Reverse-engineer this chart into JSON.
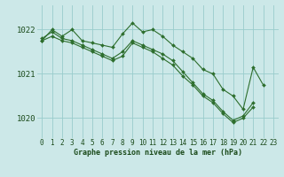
{
  "background_color": "#cce8e8",
  "grid_color": "#99cccc",
  "line_color": "#2d6e2d",
  "marker_color": "#2d6e2d",
  "ylabel_values": [
    1020,
    1021,
    1022
  ],
  "xlim": [
    -0.5,
    23.5
  ],
  "ylim": [
    1019.55,
    1022.55
  ],
  "xlabel": "Graphe pression niveau de la mer (hPa)",
  "series1_x": [
    0,
    1,
    2,
    3,
    4,
    5,
    6,
    7,
    8,
    9,
    10,
    11,
    12,
    13,
    14,
    15,
    16,
    17,
    18,
    19,
    20,
    21,
    22,
    23
  ],
  "series1_y": [
    1021.75,
    1022.0,
    1021.85,
    1022.0,
    1021.75,
    1021.7,
    1021.65,
    1021.6,
    1021.9,
    1022.15,
    1021.95,
    1022.0,
    1021.85,
    1021.65,
    1021.5,
    1021.35,
    1021.1,
    1021.0,
    1020.65,
    1020.5,
    1020.2,
    1021.15,
    1020.75,
    null
  ],
  "series2_x": [
    0,
    1,
    2,
    3,
    4,
    5,
    6,
    7,
    8,
    9,
    10,
    11,
    12,
    13,
    14,
    15,
    16,
    17,
    18,
    19,
    20,
    21,
    22,
    23
  ],
  "series2_y": [
    1021.75,
    1021.85,
    1021.75,
    1021.7,
    1021.6,
    1021.5,
    1021.4,
    1021.3,
    1021.4,
    1021.7,
    1021.6,
    1021.5,
    1021.35,
    1021.2,
    1020.95,
    1020.75,
    1020.5,
    1020.35,
    1020.1,
    1019.9,
    1020.0,
    1020.25,
    null,
    null
  ],
  "series3_x": [
    0,
    1,
    2,
    3,
    4,
    5,
    6,
    7,
    8,
    9,
    10,
    11,
    12,
    13,
    14,
    15,
    16,
    17,
    18,
    19,
    20,
    21,
    22,
    23
  ],
  "series3_y": [
    1021.8,
    1021.95,
    1021.8,
    1021.75,
    1021.65,
    1021.55,
    1021.45,
    1021.35,
    1021.5,
    1021.75,
    1021.65,
    1021.55,
    1021.45,
    1021.3,
    1021.05,
    1020.8,
    1020.55,
    1020.4,
    1020.15,
    1019.95,
    1020.05,
    1020.35,
    null,
    null
  ],
  "marker_size": 2.0,
  "line_width": 0.8,
  "xlabel_fontsize": 6.0,
  "tick_fontsize": 5.5,
  "ytick_fontsize": 6.5
}
